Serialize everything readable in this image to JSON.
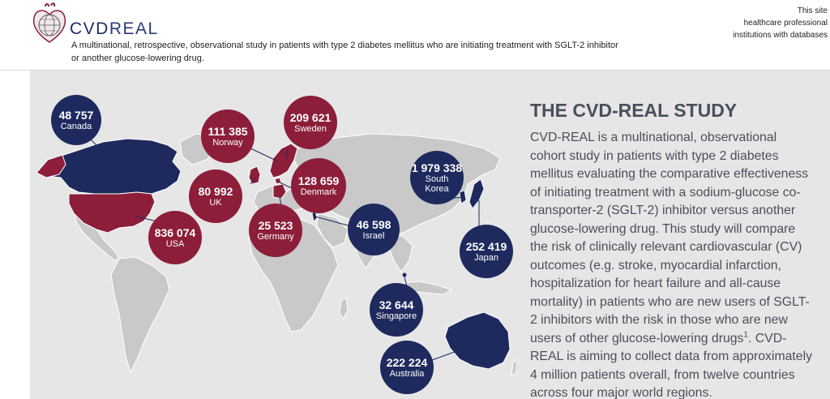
{
  "header": {
    "logo_text_a": "CVD",
    "logo_text_b": "REAL",
    "tagline_line1": "A multinational, retrospective, observational study in patients with type 2 diabetes mellitus who are initiating treatment with SGLT-2 inhibitor",
    "tagline_line2": "or another glucose-lowering drug.",
    "site_note_line1": "This site",
    "site_note_line2": "healthcare professional",
    "site_note_line3": "institutions with databases"
  },
  "study": {
    "title": "THE CVD-REAL STUDY",
    "body_before_ref": "CVD-REAL is a multinational, observational cohort study in patients with type 2 diabetes mellitus evaluating the comparative effectiveness of initiating treatment with a sodium-glucose co-transporter-2 (SGLT-2) inhibitor versus another glucose-lowering drug. This study will compare the risk of clinically relevant cardiovascular (CV) outcomes (e.g. stroke, myocardial infarction, hospitalization for heart failure and all-cause mortality) in patients who are new users of SGLT-2 inhibitors with the risk in those who are new users of other glucose-lowering drugs",
    "ref": "1",
    "body_after_ref": ". CVD-REAL is aiming to collect data from approximately 4 million patients overall, from twelve countries across four major world regions."
  },
  "countries": [
    {
      "number": "48 757",
      "name": "Canada"
    },
    {
      "number": "836 074",
      "name": "USA"
    },
    {
      "number": "111 385",
      "name": "Norway"
    },
    {
      "number": "80 992",
      "name": "UK"
    },
    {
      "number": "209 621",
      "name": "Sweden"
    },
    {
      "number": "128 659",
      "name": "Denmark"
    },
    {
      "number": "25 523",
      "name": "Germany"
    },
    {
      "number": "46 598",
      "name": "Israel"
    },
    {
      "number": "1 979 338",
      "name_line1": "South",
      "name_line2": "Korea"
    },
    {
      "number": "252 419",
      "name": "Japan"
    },
    {
      "number": "32 644",
      "name": "Singapore"
    },
    {
      "number": "222 224",
      "name": "Australia"
    }
  ],
  "colors": {
    "navy": "#1e2a5e",
    "crimson": "#8c1e3a",
    "land": "#c9c9c9",
    "banner_bg": "#e6e6e6",
    "text": "#4a4f5e"
  }
}
